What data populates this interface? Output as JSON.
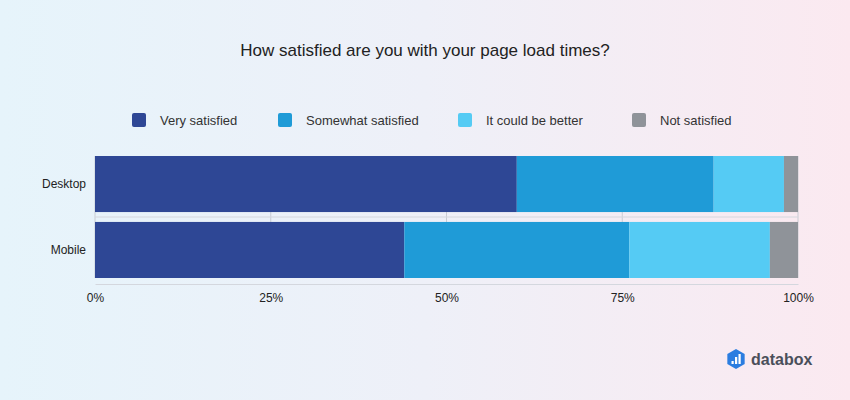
{
  "chart_data": {
    "type": "bar",
    "orientation": "horizontal",
    "stacked": true,
    "title": "How satisfied are you with your page load times?",
    "categories": [
      "Desktop",
      "Mobile"
    ],
    "series": [
      {
        "name": "Very satisfied",
        "color": "#2e4795",
        "values": [
          60,
          44
        ]
      },
      {
        "name": "Somewhat satisfied",
        "color": "#1f9bd7",
        "values": [
          28,
          32
        ]
      },
      {
        "name": "It could be better",
        "color": "#55cbf4",
        "values": [
          10,
          20
        ]
      },
      {
        "name": "Not satisfied",
        "color": "#8f9399",
        "values": [
          2,
          4
        ]
      }
    ],
    "xlim": [
      0,
      100
    ],
    "xticks": [
      {
        "value": 0,
        "label": "0%"
      },
      {
        "value": 25,
        "label": "25%"
      },
      {
        "value": 50,
        "label": "50%"
      },
      {
        "value": 75,
        "label": "75%"
      },
      {
        "value": 100,
        "label": "100%"
      }
    ],
    "grid": true,
    "legend": "top",
    "source": "databox"
  }
}
